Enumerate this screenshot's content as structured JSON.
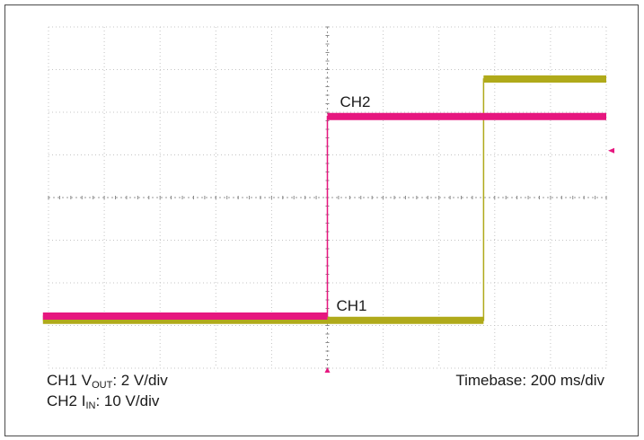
{
  "chart_data": {
    "type": "line",
    "title": "",
    "grid": true,
    "divisions": {
      "x": 10,
      "y": 8
    },
    "xlim": [
      0,
      10
    ],
    "ylim": [
      -4,
      4
    ],
    "x_unit": "div",
    "y_unit": "div",
    "series": [
      {
        "name": "CH2",
        "color": "#e6177f",
        "x": [
          -0.1,
          5.0,
          5.0,
          10.0
        ],
        "y": [
          -2.78,
          -2.78,
          1.9,
          1.9
        ]
      },
      {
        "name": "CH1",
        "color": "#b0aa1a",
        "x": [
          -0.1,
          7.8,
          7.8,
          10.0
        ],
        "y": [
          -2.88,
          -2.88,
          2.78,
          2.78
        ]
      }
    ],
    "annotations": [
      {
        "text": "CH2",
        "series": "CH2"
      },
      {
        "text": "CH1",
        "series": "CH1"
      }
    ],
    "markers": {
      "trigger_time_div": 5.0,
      "trigger_level_div": 1.1,
      "trigger_color": "#e6177f"
    }
  },
  "caption": {
    "ch1_prefix": "CH1 V",
    "ch1_sub": "OUT",
    "ch1_suffix": ": 2 V/div",
    "ch2_prefix": "CH2 I",
    "ch2_sub": "IN",
    "ch2_suffix": ": 10 V/div",
    "timebase": "Timebase: 200 ms/div"
  }
}
